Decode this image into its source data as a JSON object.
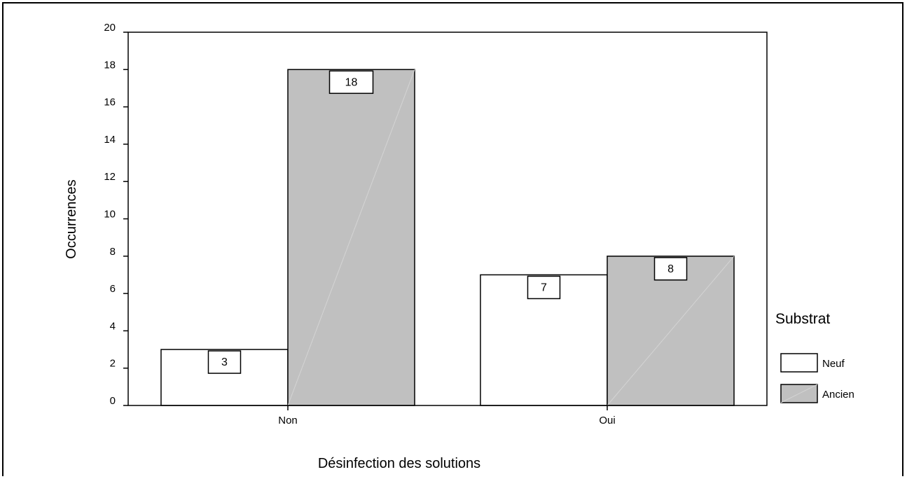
{
  "chart_data": {
    "type": "bar",
    "title": "",
    "xlabel": "Désinfection des solutions",
    "ylabel": "Occurrences",
    "categories": [
      "Non",
      "Oui"
    ],
    "series": [
      {
        "name": "Neuf",
        "values": [
          3,
          7
        ],
        "color": "#ffffff"
      },
      {
        "name": "Ancien",
        "values": [
          18,
          8
        ],
        "color": "#c0c0c0"
      }
    ],
    "ylim": [
      0,
      20
    ],
    "yticks": [
      0,
      2,
      4,
      6,
      8,
      10,
      12,
      14,
      16,
      18,
      20
    ],
    "grid": false,
    "legend": {
      "title": "Substrat",
      "position": "right"
    }
  }
}
